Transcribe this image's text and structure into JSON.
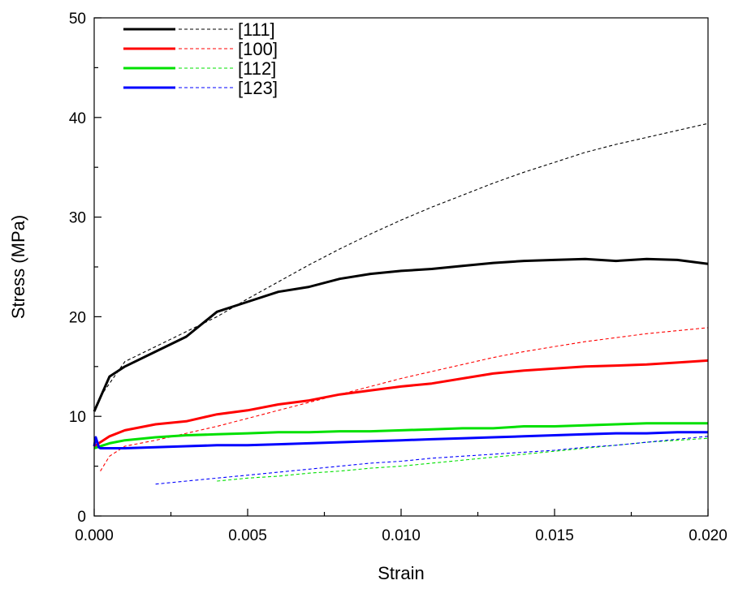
{
  "chart_data": {
    "type": "line",
    "title": "",
    "xlabel": "Strain",
    "ylabel": "Stress (MPa)",
    "xlim": [
      0.0,
      0.02
    ],
    "ylim": [
      0,
      50
    ],
    "x_ticks": [
      "0.000",
      "0.005",
      "0.010",
      "0.015",
      "0.020"
    ],
    "y_ticks": [
      "0",
      "10",
      "20",
      "30",
      "40",
      "50"
    ],
    "grid": false,
    "legend_position": "top-left",
    "series": [
      {
        "name": "[111]",
        "color": "#000000",
        "solid": {
          "x": [
            0.0,
            0.0005,
            0.001,
            0.002,
            0.003,
            0.004,
            0.005,
            0.006,
            0.007,
            0.008,
            0.009,
            0.01,
            0.011,
            0.012,
            0.013,
            0.014,
            0.015,
            0.016,
            0.017,
            0.018,
            0.019,
            0.02
          ],
          "y": [
            10.5,
            14.0,
            15.0,
            16.5,
            18.0,
            20.5,
            21.5,
            22.5,
            23.0,
            23.8,
            24.3,
            24.6,
            24.8,
            25.1,
            25.4,
            25.6,
            25.7,
            25.8,
            25.6,
            25.8,
            25.7,
            25.3
          ]
        },
        "dashed": {
          "x": [
            0.0002,
            0.001,
            0.002,
            0.003,
            0.004,
            0.005,
            0.006,
            0.007,
            0.008,
            0.009,
            0.01,
            0.011,
            0.012,
            0.013,
            0.014,
            0.015,
            0.016,
            0.017,
            0.018,
            0.019,
            0.02
          ],
          "y": [
            12.0,
            15.5,
            17.0,
            18.5,
            20.0,
            21.8,
            23.5,
            25.2,
            26.8,
            28.3,
            29.7,
            31.0,
            32.2,
            33.4,
            34.5,
            35.5,
            36.5,
            37.3,
            38.0,
            38.7,
            39.4
          ]
        }
      },
      {
        "name": "[100]",
        "color": "#ff0000",
        "solid": {
          "x": [
            0.0,
            0.0005,
            0.001,
            0.002,
            0.003,
            0.004,
            0.005,
            0.006,
            0.007,
            0.008,
            0.009,
            0.01,
            0.011,
            0.012,
            0.013,
            0.014,
            0.015,
            0.016,
            0.017,
            0.018,
            0.019,
            0.02
          ],
          "y": [
            7.0,
            8.0,
            8.6,
            9.2,
            9.5,
            10.2,
            10.6,
            11.2,
            11.6,
            12.2,
            12.6,
            13.0,
            13.3,
            13.8,
            14.3,
            14.6,
            14.8,
            15.0,
            15.1,
            15.2,
            15.4,
            15.6
          ]
        },
        "dashed": {
          "x": [
            0.0002,
            0.0005,
            0.001,
            0.002,
            0.003,
            0.004,
            0.005,
            0.006,
            0.007,
            0.008,
            0.009,
            0.01,
            0.011,
            0.012,
            0.013,
            0.014,
            0.015,
            0.016,
            0.017,
            0.018,
            0.019,
            0.02
          ],
          "y": [
            4.5,
            6.0,
            7.0,
            7.6,
            8.3,
            9.0,
            9.8,
            10.6,
            11.4,
            12.2,
            13.0,
            13.8,
            14.5,
            15.2,
            15.9,
            16.5,
            17.0,
            17.5,
            17.9,
            18.3,
            18.6,
            18.9
          ]
        }
      },
      {
        "name": "[112]",
        "color": "#00e000",
        "solid": {
          "x": [
            0.0,
            0.0005,
            0.001,
            0.002,
            0.003,
            0.004,
            0.005,
            0.006,
            0.007,
            0.008,
            0.009,
            0.01,
            0.011,
            0.012,
            0.013,
            0.014,
            0.015,
            0.016,
            0.017,
            0.018,
            0.019,
            0.02
          ],
          "y": [
            6.8,
            7.3,
            7.6,
            7.9,
            8.1,
            8.2,
            8.3,
            8.4,
            8.4,
            8.5,
            8.5,
            8.6,
            8.7,
            8.8,
            8.8,
            9.0,
            9.0,
            9.1,
            9.2,
            9.3,
            9.3,
            9.3
          ]
        },
        "dashed": {
          "x": [
            0.004,
            0.005,
            0.006,
            0.007,
            0.008,
            0.009,
            0.01,
            0.011,
            0.012,
            0.013,
            0.014,
            0.015,
            0.016,
            0.017,
            0.018,
            0.019,
            0.02
          ],
          "y": [
            3.5,
            3.8,
            4.0,
            4.3,
            4.5,
            4.8,
            5.0,
            5.3,
            5.6,
            5.9,
            6.2,
            6.5,
            6.8,
            7.1,
            7.4,
            7.6,
            7.8
          ]
        }
      },
      {
        "name": "[123]",
        "color": "#0000ff",
        "solid": {
          "x": [
            0.0,
            5e-05,
            0.0001,
            0.00015,
            0.0002,
            0.0005,
            0.001,
            0.002,
            0.003,
            0.004,
            0.005,
            0.006,
            0.007,
            0.008,
            0.009,
            0.01,
            0.011,
            0.012,
            0.013,
            0.014,
            0.015,
            0.016,
            0.017,
            0.018,
            0.019,
            0.02
          ],
          "y": [
            7.0,
            7.9,
            7.4,
            6.9,
            6.8,
            6.8,
            6.8,
            6.9,
            7.0,
            7.1,
            7.1,
            7.2,
            7.3,
            7.4,
            7.5,
            7.6,
            7.7,
            7.8,
            7.9,
            8.0,
            8.1,
            8.2,
            8.3,
            8.3,
            8.4,
            8.4
          ]
        },
        "dashed": {
          "x": [
            0.002,
            0.003,
            0.004,
            0.005,
            0.006,
            0.007,
            0.008,
            0.009,
            0.01,
            0.011,
            0.012,
            0.013,
            0.014,
            0.015,
            0.016,
            0.017,
            0.018,
            0.019,
            0.02
          ],
          "y": [
            3.2,
            3.5,
            3.8,
            4.1,
            4.4,
            4.7,
            5.0,
            5.3,
            5.5,
            5.8,
            6.0,
            6.2,
            6.4,
            6.6,
            6.9,
            7.1,
            7.4,
            7.7,
            8.0
          ]
        }
      }
    ]
  }
}
